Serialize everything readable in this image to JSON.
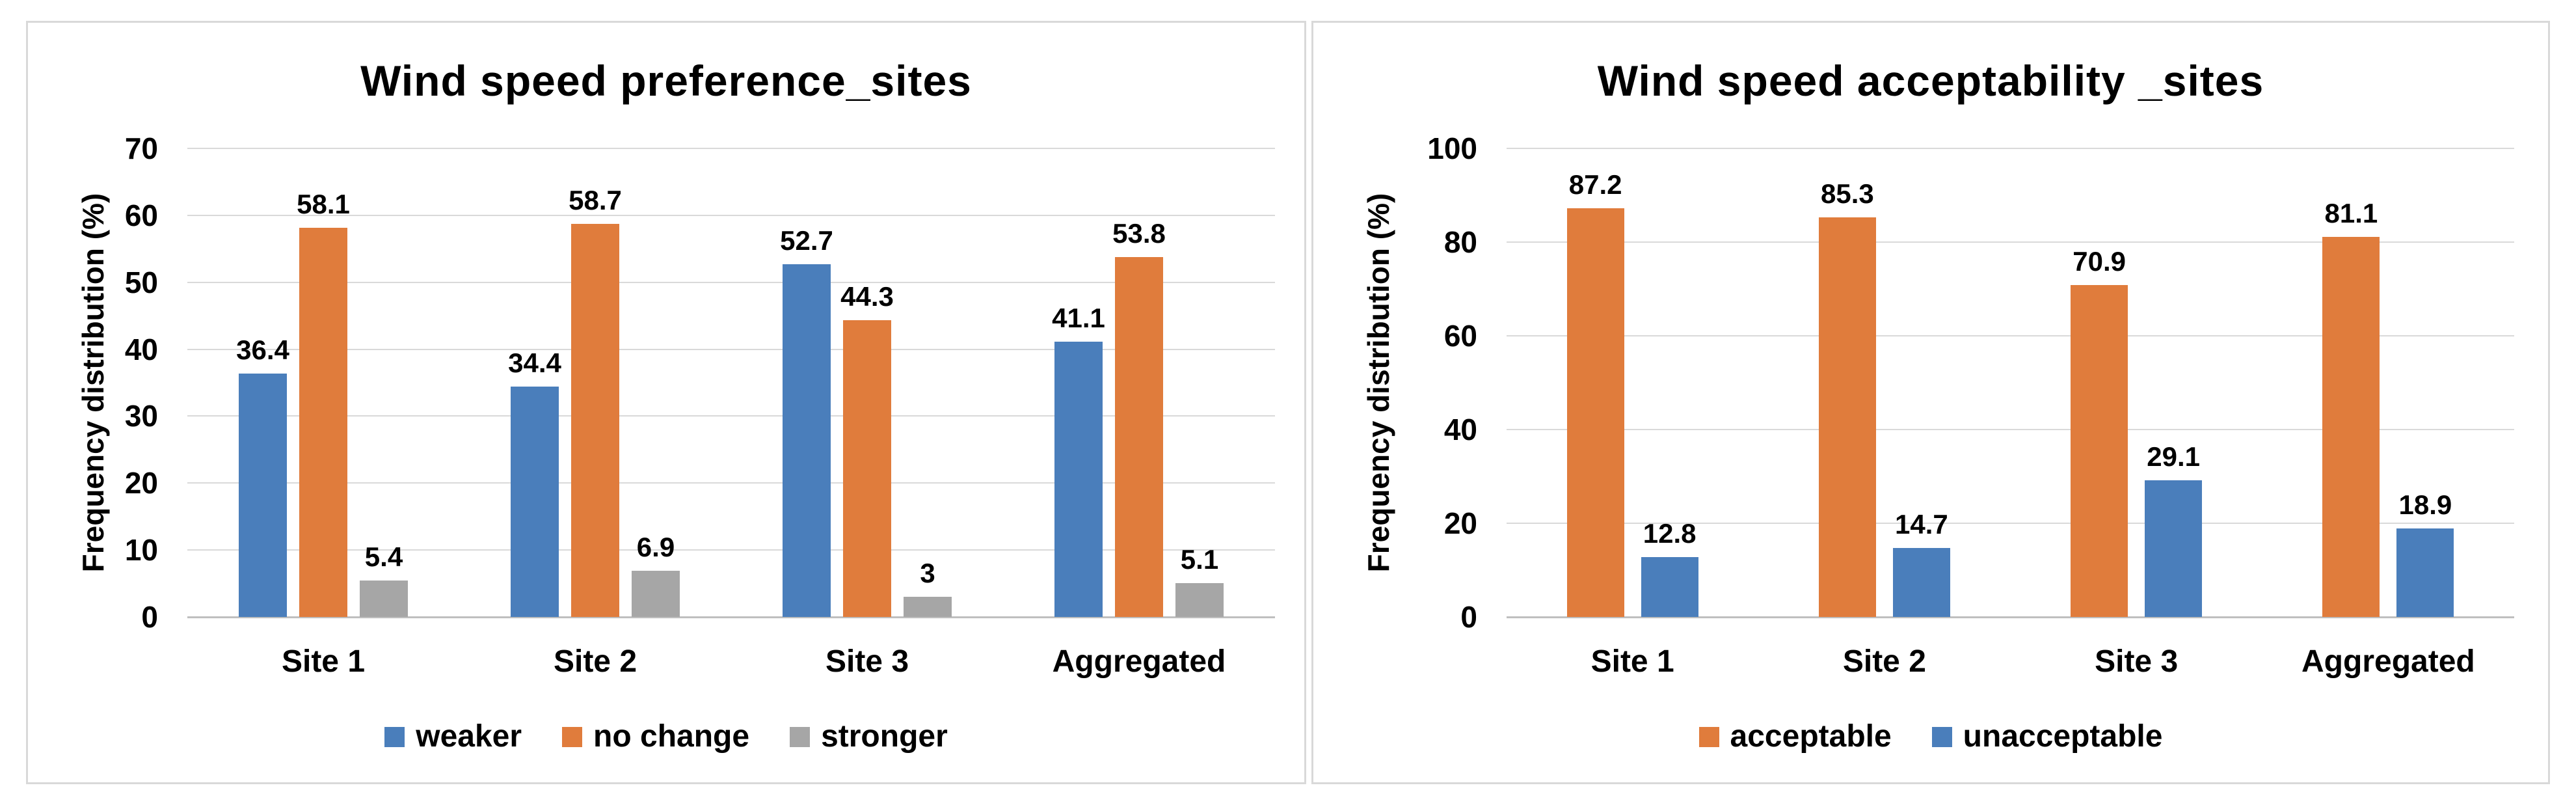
{
  "colors": {
    "blue": "#4a7ebb",
    "orange": "#e07c3c",
    "gray": "#a6a6a6",
    "gridline": "#d9d9d9",
    "axis_line": "#bfbfbf",
    "panel_border": "#d9d9d9",
    "text": "#000000",
    "background": "#ffffff"
  },
  "chart_data": [
    {
      "type": "bar",
      "title": "Wind speed preference_sites",
      "ylabel": "Frequency distribution (%)",
      "xlabel": "",
      "categories": [
        "Site 1",
        "Site 2",
        "Site 3",
        "Aggregated"
      ],
      "series": [
        {
          "name": "weaker",
          "color_key": "blue",
          "values": [
            36.4,
            34.4,
            52.7,
            41.1
          ]
        },
        {
          "name": "no change",
          "color_key": "orange",
          "values": [
            58.1,
            58.7,
            44.3,
            53.8
          ]
        },
        {
          "name": "stronger",
          "color_key": "gray",
          "values": [
            5.4,
            6.9,
            3,
            5.1
          ]
        }
      ],
      "ylim": [
        0,
        70
      ],
      "yticks": [
        0,
        10,
        20,
        30,
        40,
        50,
        60,
        70
      ],
      "grid": true,
      "legend_position": "bottom",
      "data_labels": true
    },
    {
      "type": "bar",
      "title": "Wind speed acceptability _sites",
      "ylabel": "Frequency distribution (%)",
      "xlabel": "",
      "categories": [
        "Site 1",
        "Site 2",
        "Site 3",
        "Aggregated"
      ],
      "series": [
        {
          "name": "acceptable",
          "color_key": "orange",
          "values": [
            87.2,
            85.3,
            70.9,
            81.1
          ]
        },
        {
          "name": "unacceptable",
          "color_key": "blue",
          "values": [
            12.8,
            14.7,
            29.1,
            18.9
          ]
        }
      ],
      "ylim": [
        0,
        100
      ],
      "yticks": [
        0,
        20,
        40,
        60,
        80,
        100
      ],
      "grid": true,
      "legend_position": "bottom",
      "data_labels": true
    }
  ]
}
